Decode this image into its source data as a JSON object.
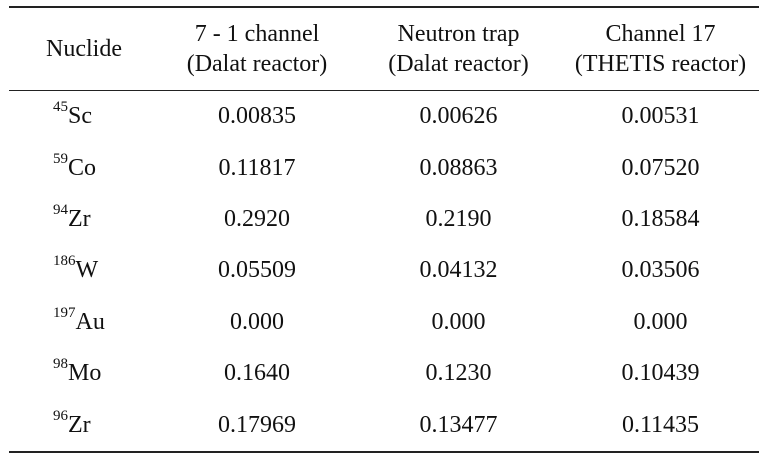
{
  "table": {
    "headers": [
      {
        "line1": "Nuclide",
        "line2": ""
      },
      {
        "line1": "7 - 1 channel",
        "line2": "(Dalat reactor)"
      },
      {
        "line1": "Neutron trap",
        "line2": "(Dalat reactor)"
      },
      {
        "line1": "Channel 17",
        "line2": "(THETIS reactor)"
      }
    ],
    "rows": [
      {
        "mass": "45",
        "symbol": "Sc",
        "values": [
          "0.00835",
          "0.00626",
          "0.00531"
        ]
      },
      {
        "mass": "59",
        "symbol": "Co",
        "values": [
          "0.11817",
          "0.08863",
          "0.07520"
        ]
      },
      {
        "mass": "94",
        "symbol": "Zr",
        "values": [
          "0.2920",
          "0.2190",
          "0.18584"
        ]
      },
      {
        "mass": "186",
        "symbol": "W",
        "values": [
          "0.05509",
          "0.04132",
          "0.03506"
        ]
      },
      {
        "mass": "197",
        "symbol": "Au",
        "values": [
          "0.000",
          "0.000",
          "0.000"
        ]
      },
      {
        "mass": "98",
        "symbol": "Mo",
        "values": [
          "0.1640",
          "0.1230",
          "0.10439"
        ]
      },
      {
        "mass": "96",
        "symbol": "Zr",
        "values": [
          "0.17969",
          "0.13477",
          "0.11435"
        ]
      }
    ]
  }
}
